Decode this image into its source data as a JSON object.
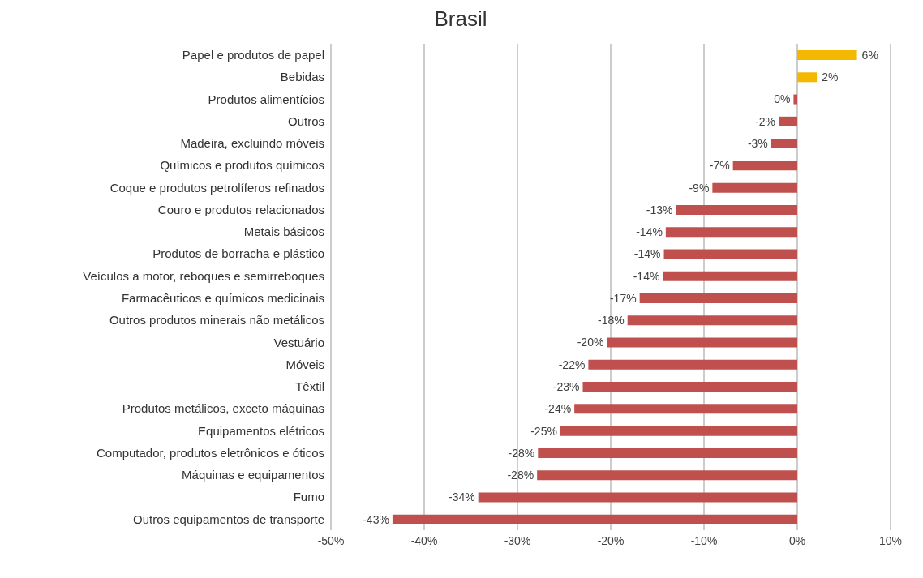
{
  "chart_data": {
    "type": "bar",
    "orientation": "horizontal",
    "title": "Brasil",
    "categories": [
      "Papel e produtos de papel",
      "Bebidas",
      "Produtos alimentícios",
      "Outros",
      "Madeira, excluindo móveis",
      "Químicos e produtos químicos",
      "Coque e produtos petrolíferos refinados",
      "Couro e produtos relacionados",
      "Metais básicos",
      "Produtos de borracha e plástico",
      "Veículos a motor, reboques e semirreboques",
      "Farmacêuticos e químicos medicinais",
      "Outros produtos minerais não metálicos",
      "Vestuário",
      "Móveis",
      "Têxtil",
      "Produtos metálicos, exceto máquinas",
      "Equipamentos elétricos",
      "Computador, produtos eletrônicos e óticos",
      "Máquinas e equipamentos",
      "Fumo",
      "Outros equipamentos de transporte"
    ],
    "values": [
      6.4,
      2.1,
      -0.4,
      -2.0,
      -2.8,
      -6.9,
      -9.1,
      -13.0,
      -14.1,
      -14.3,
      -14.4,
      -16.9,
      -18.2,
      -20.4,
      -22.4,
      -23.0,
      -23.9,
      -25.4,
      -27.8,
      -27.9,
      -34.2,
      -43.4
    ],
    "value_labels": [
      "6%",
      "2%",
      "0%",
      "-2%",
      "-3%",
      "-7%",
      "-9%",
      "-13%",
      "-14%",
      "-14%",
      "-14%",
      "-17%",
      "-18%",
      "-20%",
      "-22%",
      "-23%",
      "-24%",
      "-25%",
      "-28%",
      "-28%",
      "-34%",
      "-43%"
    ],
    "colors": [
      "#f5b800",
      "#f5b800",
      "#c0504d",
      "#c0504d",
      "#c0504d",
      "#c0504d",
      "#c0504d",
      "#c0504d",
      "#c0504d",
      "#c0504d",
      "#c0504d",
      "#c0504d",
      "#c0504d",
      "#c0504d",
      "#c0504d",
      "#c0504d",
      "#c0504d",
      "#c0504d",
      "#c0504d",
      "#c0504d",
      "#c0504d",
      "#c0504d"
    ],
    "xlim": [
      -50,
      10
    ],
    "xticks": [
      {
        "value": -50,
        "label": "-50%"
      },
      {
        "value": -40,
        "label": "-40%"
      },
      {
        "value": -30,
        "label": "-30%"
      },
      {
        "value": -20,
        "label": "-20%"
      },
      {
        "value": -10,
        "label": "-10%"
      },
      {
        "value": 0,
        "label": "0%"
      },
      {
        "value": 10,
        "label": "10%"
      }
    ],
    "grid": "x"
  }
}
